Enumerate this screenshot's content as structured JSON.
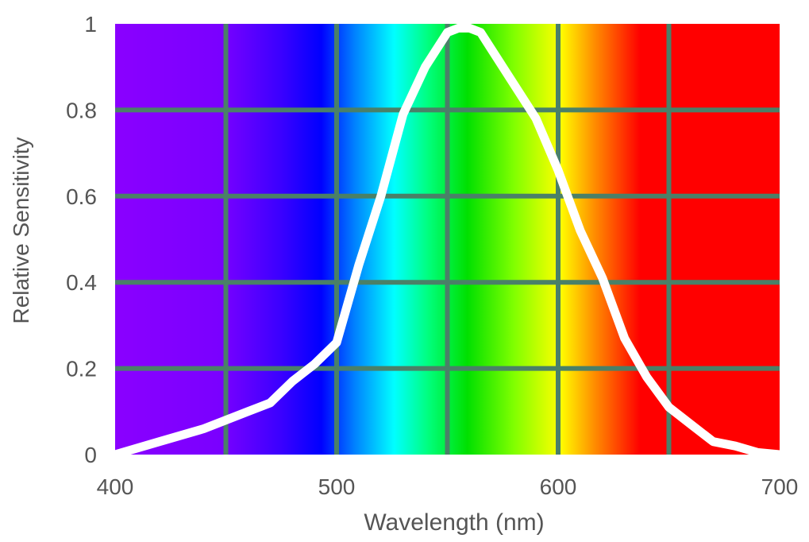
{
  "chart_data": {
    "type": "line",
    "title": "",
    "xlabel": "Wavelength (nm)",
    "ylabel": "Relative Sensitivity",
    "xlim": [
      400,
      700
    ],
    "ylim": [
      0,
      1
    ],
    "x_ticks": [
      400,
      500,
      600,
      700
    ],
    "x_tick_labels": [
      "400",
      "500",
      "600",
      "700"
    ],
    "y_ticks": [
      0,
      0.2,
      0.4,
      0.6,
      0.8,
      1
    ],
    "y_tick_labels": [
      "0",
      "0.2",
      "0.4",
      "0.6",
      "0.8",
      "1"
    ],
    "grid": true,
    "grid_x": [
      450,
      500,
      550,
      600,
      650
    ],
    "grid_y": [
      0.2,
      0.4,
      0.6,
      0.8
    ],
    "background": "visible spectrum gradient (violet to red)",
    "series": [
      {
        "x": [
          400,
          420,
          440,
          460,
          470,
          480,
          490,
          500,
          510,
          520,
          530,
          540,
          550,
          555,
          560,
          565,
          570,
          580,
          590,
          600,
          610,
          620,
          630,
          640,
          650,
          660,
          670,
          680,
          690,
          700
        ],
        "y": [
          0.0,
          0.03,
          0.06,
          0.1,
          0.12,
          0.17,
          0.21,
          0.26,
          0.44,
          0.6,
          0.79,
          0.9,
          0.98,
          0.99,
          0.99,
          0.98,
          0.94,
          0.86,
          0.78,
          0.66,
          0.52,
          0.41,
          0.27,
          0.18,
          0.11,
          0.07,
          0.03,
          0.02,
          0.005,
          0.0
        ],
        "color": "#ffffff"
      }
    ],
    "colors": {
      "grid": "#4a8068",
      "curve": "#ffffff",
      "text": "#555555"
    }
  }
}
